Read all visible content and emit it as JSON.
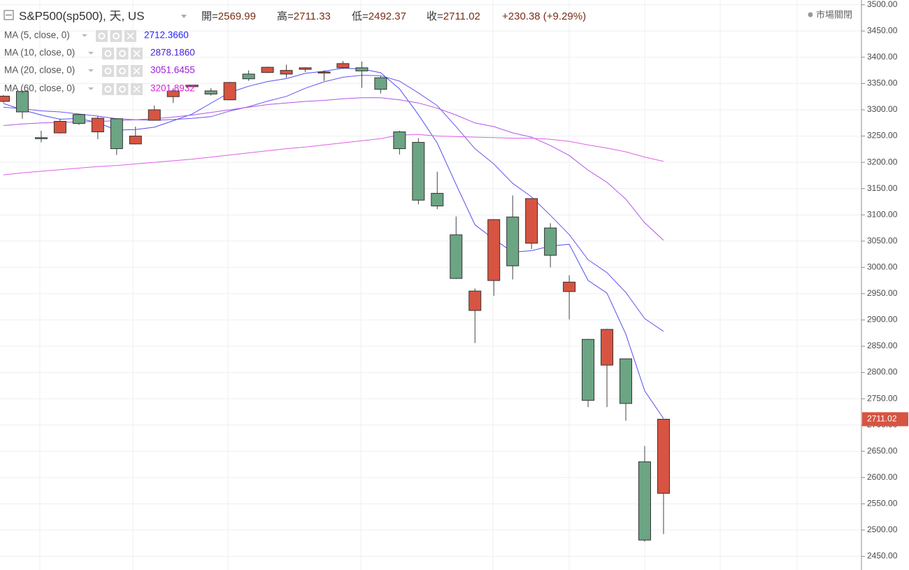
{
  "chart_data": {
    "type": "candlestick",
    "header": {
      "symbol": "S&P500(sp500), 天, US",
      "quote": [
        {
          "label": "開=",
          "value": "2569.99"
        },
        {
          "label": "高=",
          "value": "2711.33"
        },
        {
          "label": "低=",
          "value": "2492.37"
        },
        {
          "label": "收=",
          "value": "2711.02"
        }
      ],
      "change": "+230.38 (+9.29%)",
      "status": "市場關閉"
    },
    "open": [
      3316,
      3335,
      3247,
      3256,
      3291,
      3258,
      3283,
      3235,
      3280,
      3325,
      3344,
      3336,
      3319,
      3368,
      3371,
      3368,
      3377,
      3370,
      3380,
      3380,
      3361,
      3258,
      3238,
      3141,
      3062,
      2918,
      2975,
      3096,
      3046,
      3075,
      2954,
      2863,
      2814,
      2826,
      2630,
      2569.99
    ],
    "high": [
      3328,
      3337,
      3260,
      3283,
      3292,
      3288,
      3284,
      3268,
      3308,
      3341,
      3348,
      3341,
      3353,
      3375,
      3382,
      3386,
      3381,
      3375,
      3393,
      3392,
      3364,
      3260,
      3246,
      3182,
      3097,
      2960,
      3092,
      3137,
      3131,
      3084,
      2985,
      2864,
      2883,
      2826,
      2660,
      2711.33
    ],
    "low": [
      3313,
      3283,
      3238,
      3255,
      3271,
      3244,
      3214,
      3234,
      3280,
      3313,
      3343,
      3327,
      3318,
      3355,
      3370,
      3361,
      3372,
      3355,
      3378,
      3342,
      3331,
      3215,
      3120,
      3111,
      2978,
      2856,
      2946,
      2977,
      3035,
      3000,
      2901,
      2734,
      2734,
      2708,
      2478,
      2492.37
    ],
    "close": [
      3326,
      3296,
      3245,
      3278,
      3274,
      3284,
      3226,
      3250,
      3300,
      3336,
      3347,
      3330,
      3352,
      3359,
      3381,
      3375,
      3380,
      3372,
      3388,
      3374,
      3339,
      3226,
      3128,
      3117,
      2979,
      2955,
      3091,
      3003,
      3131,
      3023,
      2972,
      2747,
      2882,
      2741,
      2481,
      2711.02
    ],
    "last_close_label": "2711.02",
    "up_color": "#d75442",
    "down_color": "#6ba583",
    "indicators": [
      {
        "name": "MA (5, close, 0)",
        "readout": "2712.3660",
        "color": "#2424ff",
        "line_color": "#5050f0",
        "values": [
          3312,
          3300,
          3290,
          3282,
          3283.8,
          3275.4,
          3261.4,
          3262.4,
          3266.8,
          3279.2,
          3291.8,
          3312.6,
          3333,
          3344.8,
          3353.8,
          3359.4,
          3369.4,
          3373.4,
          3379.2,
          3377.8,
          3370.6,
          3339.8,
          3291,
          3236.8,
          3157.8,
          3081,
          3054,
          3029,
          3031.8,
          3040.6,
          3044,
          2975.2,
          2951,
          2873,
          2765,
          2712.37
        ]
      },
      {
        "name": "MA (10, close, 0)",
        "readout": "2878.1860",
        "color": "#4b20d8",
        "line_color": "#6a55ee",
        "values": [
          3305,
          3302,
          3298,
          3296,
          3292,
          3288,
          3283,
          3281,
          3280,
          3281.5,
          3283.6,
          3287,
          3297.7,
          3305.8,
          3316.5,
          3325.6,
          3341,
          3353.2,
          3362,
          3365.8,
          3365,
          3354.6,
          3332.2,
          3308,
          3267.8,
          3225.8,
          3196.9,
          3160,
          3134.3,
          3099.2,
          3062.5,
          3014.6,
          2990,
          2952.4,
          2902.6,
          2878.19
        ]
      },
      {
        "name": "MA (20, close, 0)",
        "readout": "3051.6455",
        "color": "#9a1fd8",
        "line_color": "#b454e8",
        "values": [
          3270,
          3273,
          3275,
          3276,
          3277,
          3278,
          3279,
          3281,
          3283,
          3286,
          3290,
          3295,
          3300,
          3305,
          3310,
          3313,
          3316,
          3318,
          3321,
          3323,
          3323,
          3319,
          3313,
          3303,
          3290,
          3275,
          3268,
          3256,
          3248,
          3232,
          3213,
          3185,
          3162,
          3130,
          3085,
          3051.65
        ]
      },
      {
        "name": "MA (60, close, 0)",
        "readout": "3201.8932",
        "color": "#d424d4",
        "line_color": "#e060e6",
        "values": [
          3176,
          3180,
          3183,
          3186,
          3189,
          3192,
          3194,
          3197,
          3200,
          3203,
          3206,
          3210,
          3214,
          3218,
          3222,
          3226,
          3229,
          3233,
          3237,
          3241,
          3245,
          3252,
          3253,
          3250,
          3249,
          3248,
          3247,
          3246,
          3246,
          3244,
          3240,
          3233,
          3227,
          3220,
          3210,
          3201.89
        ]
      }
    ],
    "ylim": [
      2424,
      3509
    ],
    "yticks": [
      {
        "value": 2450,
        "label": "2450.00"
      },
      {
        "value": 2500,
        "label": "2500.00"
      },
      {
        "value": 2550,
        "label": "2550.00"
      },
      {
        "value": 2600,
        "label": "2600.00"
      },
      {
        "value": 2650,
        "label": "2650.00"
      },
      {
        "value": 2700,
        "label": "2700.00"
      },
      {
        "value": 2750,
        "label": "2750.00"
      },
      {
        "value": 2800,
        "label": "2800.00"
      },
      {
        "value": 2850,
        "label": "2850.00"
      },
      {
        "value": 2900,
        "label": "2900.00"
      },
      {
        "value": 2950,
        "label": "2950.00"
      },
      {
        "value": 3000,
        "label": "3000.00"
      },
      {
        "value": 3050,
        "label": "3050.00"
      },
      {
        "value": 3100,
        "label": "3100.00"
      },
      {
        "value": 3150,
        "label": "3150.00"
      },
      {
        "value": 3200,
        "label": "3200.00"
      },
      {
        "value": 3250,
        "label": "3250.00"
      },
      {
        "value": 3300,
        "label": "3300.00"
      },
      {
        "value": 3350,
        "label": "3350.00"
      },
      {
        "value": 3400,
        "label": "3400.00"
      },
      {
        "value": 3450,
        "label": "3450.00"
      },
      {
        "value": 3500,
        "label": "3500.00"
      }
    ],
    "grid": true
  }
}
